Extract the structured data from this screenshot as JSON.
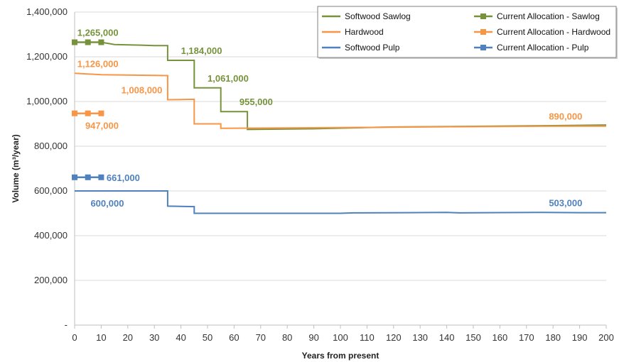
{
  "chart_data": {
    "type": "line",
    "xlabel": "Years from present",
    "ylabel": "Volume (m³/year)",
    "xlim": [
      0,
      200
    ],
    "ylim": [
      0,
      1400000
    ],
    "x_ticks": [
      0,
      10,
      20,
      30,
      40,
      50,
      60,
      70,
      80,
      90,
      100,
      110,
      120,
      130,
      140,
      150,
      160,
      170,
      180,
      190,
      200
    ],
    "y_ticks": [
      0,
      200000,
      400000,
      600000,
      800000,
      1000000,
      1200000,
      1400000
    ],
    "y_tick_labels": [
      "-",
      "200,000",
      "400,000",
      "600,000",
      "800,000",
      "1,000,000",
      "1,200,000",
      "1,400,000"
    ],
    "grid": "horizontal",
    "legend_position": "top-right",
    "colors": {
      "sawlog": "#76933C",
      "hardwood": "#F79646",
      "pulp": "#4F81BD"
    },
    "series": [
      {
        "name": "Softwood Sawlog",
        "key": "sawlog",
        "line_style": "step",
        "points": [
          [
            0,
            1265000
          ],
          [
            5,
            1265000
          ],
          [
            10,
            1265000
          ],
          [
            15,
            1255000
          ],
          [
            25,
            1252000
          ],
          [
            30,
            1250000
          ],
          [
            35,
            1250000
          ],
          [
            35,
            1184000
          ],
          [
            45,
            1184000
          ],
          [
            45,
            1061000
          ],
          [
            55,
            1061000
          ],
          [
            55,
            955000
          ],
          [
            65,
            955000
          ],
          [
            65,
            875000
          ],
          [
            90,
            878000
          ],
          [
            120,
            886000
          ],
          [
            150,
            889000
          ],
          [
            180,
            892000
          ],
          [
            200,
            895000
          ]
        ]
      },
      {
        "name": "Hardwood",
        "key": "hardwood",
        "line_style": "step",
        "points": [
          [
            0,
            1126000
          ],
          [
            10,
            1120000
          ],
          [
            20,
            1118000
          ],
          [
            35,
            1116000
          ],
          [
            35,
            1008000
          ],
          [
            45,
            1010000
          ],
          [
            45,
            900000
          ],
          [
            55,
            900000
          ],
          [
            55,
            880000
          ],
          [
            80,
            882000
          ],
          [
            110,
            884000
          ],
          [
            140,
            887000
          ],
          [
            170,
            889000
          ],
          [
            190,
            890000
          ],
          [
            200,
            890000
          ]
        ]
      },
      {
        "name": "Softwood Pulp",
        "key": "pulp",
        "line_style": "step",
        "points": [
          [
            0,
            600000
          ],
          [
            35,
            600000
          ],
          [
            35,
            532000
          ],
          [
            45,
            530000
          ],
          [
            45,
            500000
          ],
          [
            100,
            500000
          ],
          [
            105,
            502000
          ],
          [
            125,
            503000
          ],
          [
            140,
            504000
          ],
          [
            145,
            502000
          ],
          [
            155,
            503000
          ],
          [
            175,
            504000
          ],
          [
            190,
            503000
          ],
          [
            200,
            503000
          ]
        ]
      },
      {
        "name": "Current Allocation - Sawlog",
        "key": "sawlog",
        "line_style": "markers",
        "points": [
          [
            0,
            1265000
          ],
          [
            5,
            1265000
          ],
          [
            10,
            1265000
          ]
        ]
      },
      {
        "name": "Current Allocation - Hardwood",
        "key": "hardwood",
        "line_style": "markers",
        "points": [
          [
            0,
            947000
          ],
          [
            5,
            947000
          ],
          [
            10,
            947000
          ]
        ]
      },
      {
        "name": "Current Allocation - Pulp",
        "key": "pulp",
        "line_style": "markers",
        "points": [
          [
            0,
            661000
          ],
          [
            5,
            661000
          ],
          [
            10,
            661000
          ]
        ]
      }
    ],
    "annotations": [
      {
        "text": "1,265,000",
        "key": "sawlog",
        "x": 1,
        "y": 1265000,
        "anchor": "start",
        "offset_label": "above"
      },
      {
        "text": "1,184,000",
        "key": "sawlog",
        "x": 40,
        "y": 1184000,
        "anchor": "start",
        "offset_label": "above"
      },
      {
        "text": "1,061,000",
        "key": "sawlog",
        "x": 50,
        "y": 1061000,
        "anchor": "start",
        "offset_label": "above"
      },
      {
        "text": "955,000",
        "key": "sawlog",
        "x": 62,
        "y": 955000,
        "anchor": "start",
        "offset_label": "above"
      },
      {
        "text": "1,126,000",
        "key": "hardwood",
        "x": 1,
        "y": 1126000,
        "anchor": "start",
        "offset_label": "above"
      },
      {
        "text": "1,008,000",
        "key": "hardwood",
        "x": 33,
        "y": 1008000,
        "anchor": "end",
        "offset_label": "above"
      },
      {
        "text": "947,000",
        "key": "hardwood",
        "x": 4,
        "y": 947000,
        "anchor": "start",
        "offset_label": "below"
      },
      {
        "text": "890,000",
        "key": "hardwood",
        "x": 191,
        "y": 890000,
        "anchor": "end",
        "offset_label": "above"
      },
      {
        "text": "661,000",
        "key": "pulp",
        "x": 12,
        "y": 661000,
        "anchor": "start",
        "offset_label": "right"
      },
      {
        "text": "600,000",
        "key": "pulp",
        "x": 6,
        "y": 600000,
        "anchor": "start",
        "offset_label": "below"
      },
      {
        "text": "503,000",
        "key": "pulp",
        "x": 191,
        "y": 503000,
        "anchor": "end",
        "offset_label": "above"
      }
    ]
  }
}
